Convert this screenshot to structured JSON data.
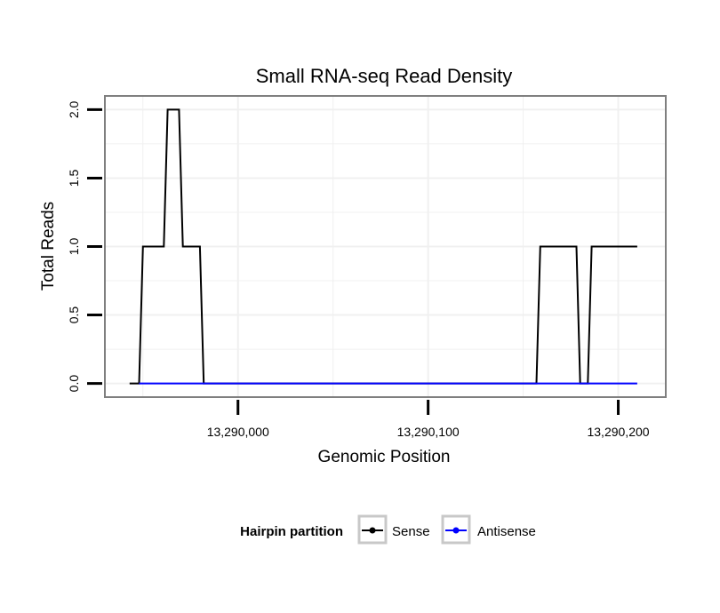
{
  "chart_data": {
    "type": "line",
    "title": "Small RNA-seq Read Density",
    "xlabel": "Genomic Position",
    "ylabel": "Total Reads",
    "xlim": [
      13289930,
      13290225
    ],
    "ylim": [
      -0.1,
      2.1
    ],
    "xticks": [
      13290000,
      13290100,
      13290200
    ],
    "xtick_labels": [
      "13,290,000",
      "13,290,100",
      "13,290,200"
    ],
    "yticks": [
      0,
      0.5,
      1,
      1.5,
      2
    ],
    "ytick_labels": [
      "0.0",
      "0.5",
      "1.0",
      "1.5",
      "2.0"
    ],
    "grid": true,
    "legend": {
      "title": "Hairpin partition",
      "position": "bottom",
      "entries": [
        "Sense",
        "Antisense"
      ]
    },
    "series": [
      {
        "name": "Sense",
        "color": "#000000",
        "x": [
          13289943,
          13289948,
          13289950,
          13289961,
          13289963,
          13289969,
          13289971,
          13289980,
          13289982,
          13290157,
          13290159,
          13290178,
          13290180,
          13290184,
          13290186,
          13290210
        ],
        "y": [
          0,
          0,
          1,
          1,
          2,
          2,
          1,
          1,
          0,
          0,
          1,
          1,
          0,
          0,
          1,
          1
        ]
      },
      {
        "name": "Antisense",
        "color": "#0000ff",
        "x": [
          13289948,
          13290210
        ],
        "y": [
          0,
          0
        ]
      }
    ]
  }
}
